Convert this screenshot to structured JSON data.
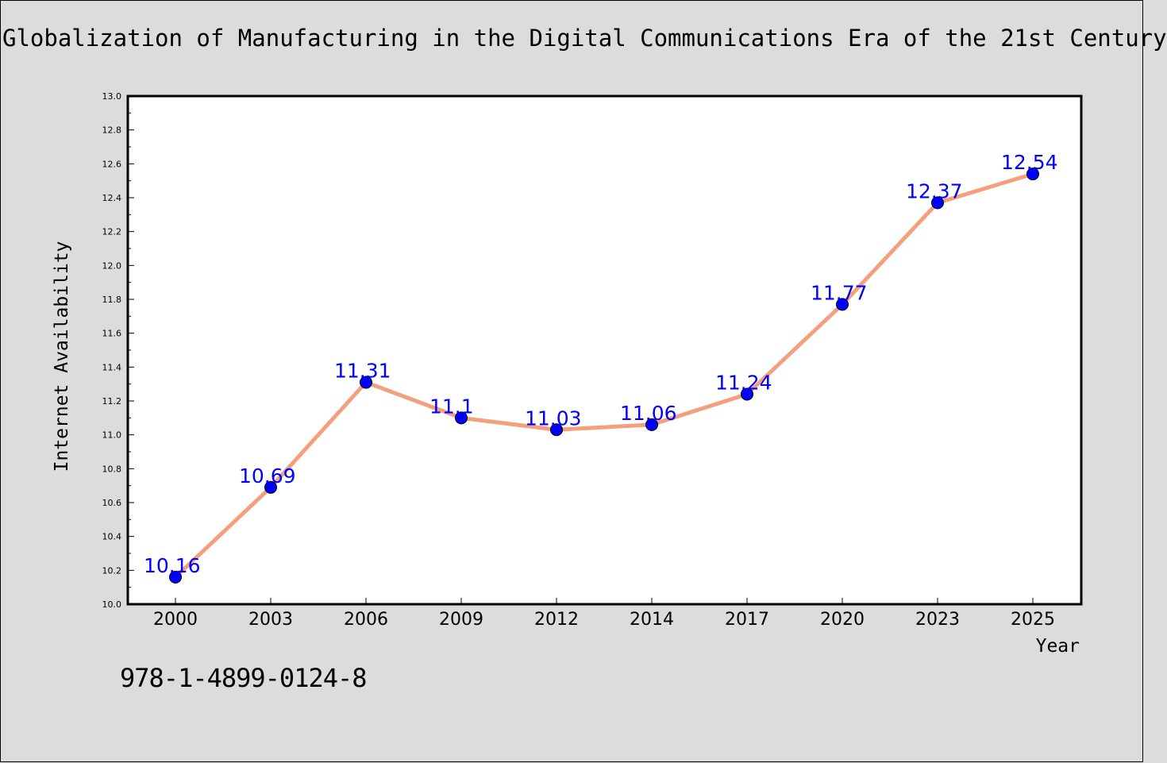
{
  "chart_data": {
    "type": "line",
    "title": "Globalization of Manufacturing in the Digital Communications Era of the 21st Century",
    "xlabel": "Year",
    "ylabel": "Internet Availability",
    "categories": [
      "2000",
      "2003",
      "2006",
      "2009",
      "2012",
      "2014",
      "2017",
      "2020",
      "2023",
      "2025"
    ],
    "values": [
      10.16,
      10.69,
      11.31,
      11.1,
      11.03,
      11.06,
      11.24,
      11.77,
      12.37,
      12.54
    ],
    "data_labels": [
      "10.16",
      "10.69",
      "11.31",
      "11.1",
      "11.03",
      "11.06",
      "11.24",
      "11.77",
      "12.37",
      "12.54"
    ],
    "ylim": [
      10.0,
      13.0
    ],
    "yticks": [
      "10.0",
      "10.2",
      "10.4",
      "10.6",
      "10.8",
      "11.0",
      "11.2",
      "11.4",
      "11.6",
      "11.8",
      "12.0",
      "12.2",
      "12.4",
      "12.6",
      "12.8",
      "13.0"
    ],
    "grid": false,
    "legend": false,
    "line_color": "#f4a07f",
    "marker_color": "#0000ff",
    "label_color": "#0000ff",
    "background_color": "#dcdcdc",
    "plot_background": "#ffffff"
  },
  "footer": {
    "isbn": "978-1-4899-0124-8"
  }
}
